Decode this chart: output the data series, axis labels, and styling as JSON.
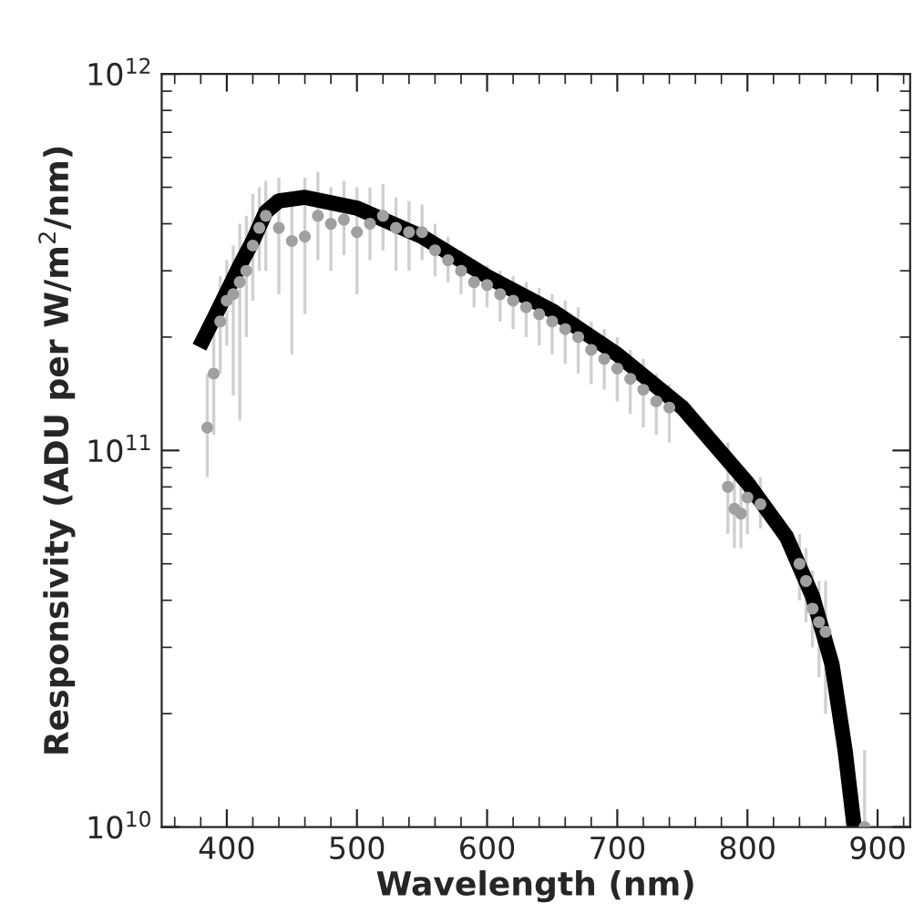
{
  "chart_data": {
    "type": "scatter",
    "xlabel": "Wavelength (nm)",
    "ylabel": "Responsivity (ADU per W/m$^{2}$/nm)",
    "log": "y",
    "grid": false,
    "marker": "circle",
    "xlim": [
      350,
      925
    ],
    "xticks": [
      400,
      500,
      600,
      700,
      800,
      900
    ],
    "ylim": [
      10000000000.0,
      1000000000000.0
    ],
    "yticks": [
      {
        "value": 10000000000.0,
        "label": "10$^{10}$"
      },
      {
        "value": 100000000000.0,
        "label": "10$^{11}$"
      },
      {
        "value": 1000000000000.0,
        "label": "10$^{12}$"
      }
    ],
    "series": [
      {
        "color": "#a0a0a0",
        "x": [
          385,
          390,
          395,
          400,
          405,
          410,
          415,
          420,
          425,
          430,
          440,
          450,
          460,
          470,
          480,
          490,
          500,
          510,
          520,
          530,
          540,
          550,
          560,
          570,
          580,
          590,
          600,
          610,
          620,
          630,
          640,
          650,
          660,
          670,
          680,
          690,
          700,
          710,
          720,
          730,
          740,
          785,
          790,
          795,
          800,
          810,
          840,
          845,
          850,
          855,
          860,
          890
        ],
        "values": [
          115000000000.0,
          160000000000.0,
          220000000000.0,
          250000000000.0,
          260000000000.0,
          280000000000.0,
          300000000000.0,
          350000000000.0,
          390000000000.0,
          420000000000.0,
          390000000000.0,
          360000000000.0,
          370000000000.0,
          420000000000.0,
          400000000000.0,
          410000000000.0,
          380000000000.0,
          400000000000.0,
          420000000000.0,
          390000000000.0,
          380000000000.0,
          380000000000.0,
          340000000000.0,
          320000000000.0,
          300000000000.0,
          280000000000.0,
          275000000000.0,
          260000000000.0,
          250000000000.0,
          240000000000.0,
          230000000000.0,
          220000000000.0,
          210000000000.0,
          200000000000.0,
          185000000000.0,
          175000000000.0,
          165000000000.0,
          155000000000.0,
          145000000000.0,
          135000000000.0,
          130000000000.0,
          80000000000.0,
          70000000000.0,
          68000000000.0,
          75000000000.0,
          72000000000.0,
          50000000000.0,
          45000000000.0,
          38000000000.0,
          35000000000.0,
          33000000000.0,
          10000000000.0
        ],
        "errors": [
          [
            85000000000.0,
            160000000000.0
          ],
          [
            110000000000.0,
            220000000000.0
          ],
          [
            160000000000.0,
            290000000000.0
          ],
          [
            190000000000.0,
            320000000000.0
          ],
          [
            140000000000.0,
            350000000000.0
          ],
          [
            120000000000.0,
            400000000000.0
          ],
          [
            200000000000.0,
            420000000000.0
          ],
          [
            250000000000.0,
            480000000000.0
          ],
          [
            300000000000.0,
            500000000000.0
          ],
          [
            300000000000.0,
            520000000000.0
          ],
          [
            260000000000.0,
            530000000000.0
          ],
          [
            180000000000.0,
            480000000000.0
          ],
          [
            230000000000.0,
            530000000000.0
          ],
          [
            320000000000.0,
            550000000000.0
          ],
          [
            300000000000.0,
            500000000000.0
          ],
          [
            330000000000.0,
            520000000000.0
          ],
          [
            260000000000.0,
            500000000000.0
          ],
          [
            320000000000.0,
            500000000000.0
          ],
          [
            340000000000.0,
            510000000000.0
          ],
          [
            300000000000.0,
            470000000000.0
          ],
          [
            300000000000.0,
            460000000000.0
          ],
          [
            320000000000.0,
            450000000000.0
          ],
          [
            290000000000.0,
            400000000000.0
          ],
          [
            280000000000.0,
            370000000000.0
          ],
          [
            260000000000.0,
            340000000000.0
          ],
          [
            240000000000.0,
            320000000000.0
          ],
          [
            240000000000.0,
            310000000000.0
          ],
          [
            220000000000.0,
            300000000000.0
          ],
          [
            210000000000.0,
            290000000000.0
          ],
          [
            200000000000.0,
            280000000000.0
          ],
          [
            190000000000.0,
            270000000000.0
          ],
          [
            180000000000.0,
            260000000000.0
          ],
          [
            170000000000.0,
            250000000000.0
          ],
          [
            160000000000.0,
            240000000000.0
          ],
          [
            150000000000.0,
            220000000000.0
          ],
          [
            145000000000.0,
            210000000000.0
          ],
          [
            135000000000.0,
            200000000000.0
          ],
          [
            125000000000.0,
            185000000000.0
          ],
          [
            115000000000.0,
            175000000000.0
          ],
          [
            110000000000.0,
            160000000000.0
          ],
          [
            105000000000.0,
            150000000000.0
          ],
          [
            60000000000.0,
            105000000000.0
          ],
          [
            55000000000.0,
            85000000000.0
          ],
          [
            55000000000.0,
            80000000000.0
          ],
          [
            60000000000.0,
            85000000000.0
          ],
          [
            62000000000.0,
            85000000000.0
          ],
          [
            40000000000.0,
            60000000000.0
          ],
          [
            35000000000.0,
            55000000000.0
          ],
          [
            30000000000.0,
            48000000000.0
          ],
          [
            25000000000.0,
            45000000000.0
          ],
          [
            20000000000.0,
            45000000000.0
          ],
          [
            10000000000.0,
            16000000000.0
          ]
        ]
      },
      {
        "type": "line",
        "color": "#000000",
        "line_style": "solid",
        "marker": "none",
        "x": [
          379,
          390,
          400,
          410,
          420,
          430,
          440,
          460,
          500,
          550,
          600,
          650,
          700,
          750,
          800,
          830,
          850,
          865,
          875,
          882
        ],
        "values": [
          188000000000.0,
          224000000000.0,
          263000000000.0,
          310000000000.0,
          360000000000.0,
          430000000000.0,
          460000000000.0,
          470000000000.0,
          440000000000.0,
          370000000000.0,
          290000000000.0,
          235000000000.0,
          180000000000.0,
          130000000000.0,
          82000000000.0,
          59000000000.0,
          41000000000.0,
          27000000000.0,
          16000000000.0,
          10000000000.0
        ]
      }
    ]
  }
}
